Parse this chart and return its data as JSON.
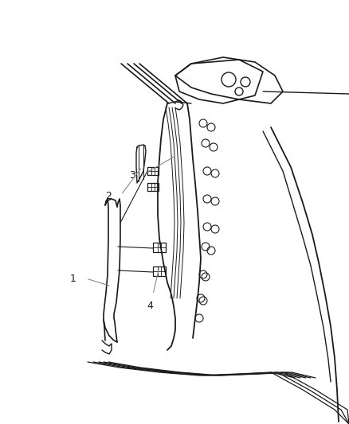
{
  "bg_color": "#ffffff",
  "line_color": "#1a1a1a",
  "label_color": "#1a1a1a",
  "anno_color": "#888888",
  "fig_width": 4.38,
  "fig_height": 5.33,
  "dpi": 100
}
